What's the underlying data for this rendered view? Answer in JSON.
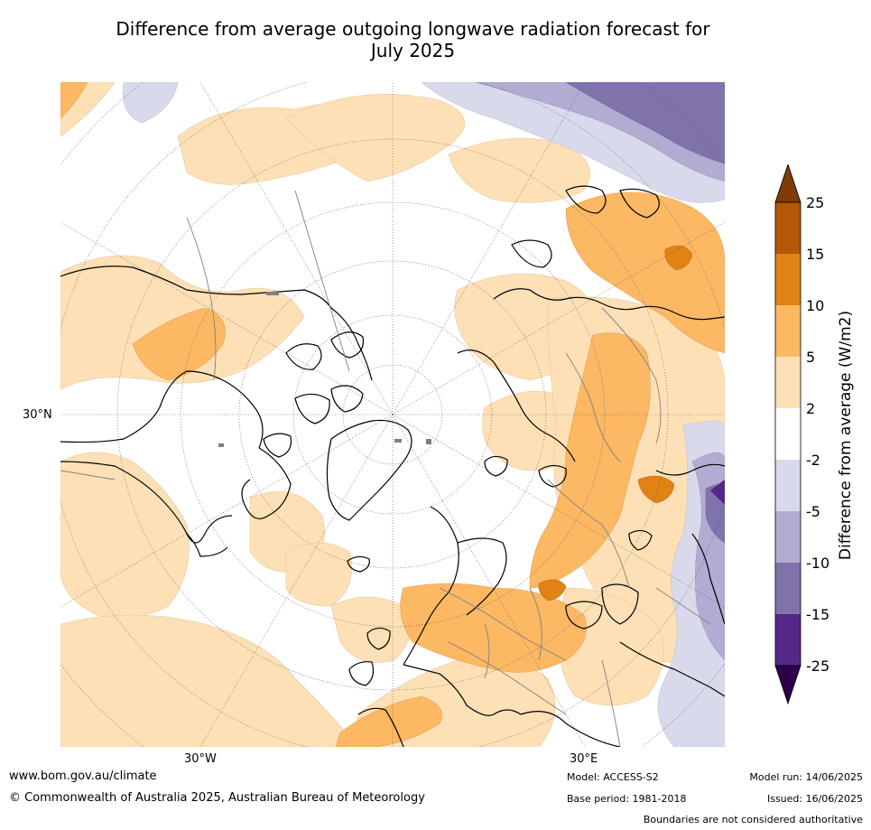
{
  "title_line1": "Difference from average outgoing longwave radiation forecast for",
  "title_line2": "July 2025",
  "labels": {
    "lat_30n": "30°N",
    "lon_30w": "30°W",
    "lon_30e": "30°E"
  },
  "legend": {
    "title": "Difference from average (W/m2)",
    "ticks": [
      "25",
      "15",
      "10",
      "5",
      "2",
      "-2",
      "-5",
      "-10",
      "-15",
      "-25"
    ],
    "bins": [
      {
        "range": ">25",
        "color": "#7f3b08"
      },
      {
        "range": "15 to 25",
        "color": "#b35806"
      },
      {
        "range": "10 to 15",
        "color": "#e08214"
      },
      {
        "range": "5 to 10",
        "color": "#fdb863"
      },
      {
        "range": "2 to 5",
        "color": "#fee0b6"
      },
      {
        "range": "-2 to 2",
        "color": "#ffffff"
      },
      {
        "range": "-5 to -2",
        "color": "#d8daeb"
      },
      {
        "range": "-10 to -5",
        "color": "#b2abd2"
      },
      {
        "range": "-15 to -10",
        "color": "#8073ac"
      },
      {
        "range": "-25 to -15",
        "color": "#542788"
      },
      {
        "range": "<-25",
        "color": "#2d004b"
      }
    ]
  },
  "footer": {
    "website": "www.bom.gov.au/climate",
    "copyright": "© Commonwealth of Australia 2025, Australian Bureau of Meteorology",
    "model": "Model: ACCESS-S2",
    "base_period": "Base period: 1981-2018",
    "model_run": "Model run: 14/06/2025",
    "issued": "Issued: 16/06/2025",
    "disclaimer": "Boundaries are not considered authoritative"
  }
}
